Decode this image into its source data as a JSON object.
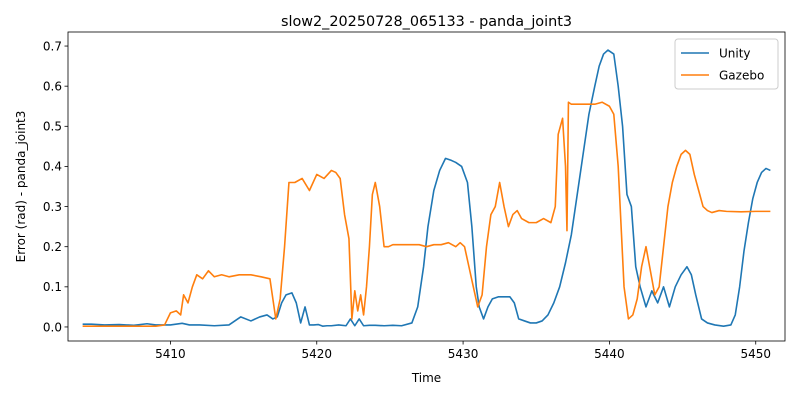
{
  "chart_data": {
    "type": "line",
    "title": "slow2_20250728_065133 - panda_joint3",
    "xlabel": "Time",
    "ylabel": "Error (rad) - panda_joint3",
    "xlim": [
      5403.0,
      5452.0
    ],
    "ylim": [
      -0.035,
      0.735
    ],
    "xticks": [
      5410,
      5420,
      5430,
      5440,
      5450
    ],
    "yticks": [
      0.0,
      0.1,
      0.2,
      0.3,
      0.4,
      0.5,
      0.6,
      0.7
    ],
    "xtick_labels": [
      "5410",
      "5420",
      "5430",
      "5440",
      "5450"
    ],
    "ytick_labels": [
      "0.0",
      "0.1",
      "0.2",
      "0.3",
      "0.4",
      "0.5",
      "0.6",
      "0.7"
    ],
    "grid": false,
    "legend_position": "top-right",
    "series": [
      {
        "name": "Unity",
        "color": "#1f77b4",
        "x": [
          5404.0,
          5404.6,
          5405.5,
          5406.5,
          5407.5,
          5408.4,
          5409.0,
          5410.0,
          5410.8,
          5411.3,
          5412.0,
          5413.0,
          5414.0,
          5414.8,
          5415.5,
          5416.1,
          5416.6,
          5417.0,
          5417.3,
          5417.6,
          5417.9,
          5418.3,
          5418.6,
          5418.9,
          5419.2,
          5419.5,
          5419.8,
          5420.1,
          5420.4,
          5420.7,
          5421.0,
          5421.5,
          5422.0,
          5422.3,
          5422.6,
          5422.9,
          5423.2,
          5423.6,
          5424.0,
          5424.6,
          5425.2,
          5425.8,
          5426.5,
          5426.9,
          5427.3,
          5427.6,
          5428.0,
          5428.4,
          5428.8,
          5429.2,
          5429.5,
          5429.9,
          5430.3,
          5430.6,
          5430.9,
          5431.1,
          5431.4,
          5431.7,
          5432.0,
          5432.4,
          5432.8,
          5433.2,
          5433.5,
          5433.8,
          5434.2,
          5434.6,
          5435.0,
          5435.4,
          5435.8,
          5436.2,
          5436.6,
          5437.0,
          5437.4,
          5437.8,
          5438.2,
          5438.6,
          5439.0,
          5439.3,
          5439.6,
          5439.9,
          5440.3,
          5440.6,
          5440.9,
          5441.2,
          5441.5,
          5441.8,
          5442.1,
          5442.5,
          5442.9,
          5443.3,
          5443.7,
          5444.1,
          5444.5,
          5444.9,
          5445.3,
          5445.6,
          5445.9,
          5446.3,
          5446.7,
          5447.2,
          5447.8,
          5448.3,
          5448.6,
          5448.9,
          5449.2,
          5449.5,
          5449.8,
          5450.1,
          5450.4,
          5450.7,
          5451.0
        ],
        "y": [
          0.007,
          0.007,
          0.005,
          0.006,
          0.004,
          0.008,
          0.005,
          0.005,
          0.009,
          0.005,
          0.005,
          0.003,
          0.005,
          0.025,
          0.015,
          0.025,
          0.03,
          0.02,
          0.025,
          0.06,
          0.08,
          0.085,
          0.06,
          0.01,
          0.05,
          0.005,
          0.005,
          0.006,
          0.002,
          0.003,
          0.003,
          0.005,
          0.003,
          0.02,
          0.003,
          0.02,
          0.003,
          0.004,
          0.004,
          0.003,
          0.004,
          0.003,
          0.01,
          0.05,
          0.15,
          0.25,
          0.34,
          0.39,
          0.42,
          0.415,
          0.41,
          0.4,
          0.36,
          0.25,
          0.1,
          0.05,
          0.02,
          0.05,
          0.07,
          0.075,
          0.075,
          0.075,
          0.06,
          0.02,
          0.015,
          0.01,
          0.01,
          0.015,
          0.03,
          0.06,
          0.1,
          0.16,
          0.23,
          0.33,
          0.43,
          0.53,
          0.6,
          0.65,
          0.68,
          0.69,
          0.68,
          0.6,
          0.5,
          0.33,
          0.3,
          0.15,
          0.1,
          0.05,
          0.09,
          0.06,
          0.1,
          0.05,
          0.1,
          0.13,
          0.15,
          0.13,
          0.08,
          0.02,
          0.01,
          0.005,
          0.002,
          0.005,
          0.03,
          0.1,
          0.19,
          0.26,
          0.32,
          0.36,
          0.385,
          0.395,
          0.39
        ]
      },
      {
        "name": "Gazebo",
        "color": "#ff7f0e",
        "x": [
          5404.0,
          5406.5,
          5409.0,
          5409.6,
          5410.0,
          5410.4,
          5410.7,
          5410.9,
          5411.2,
          5411.5,
          5411.8,
          5412.2,
          5412.6,
          5413.0,
          5413.5,
          5414.0,
          5414.7,
          5415.5,
          5416.2,
          5416.8,
          5417.2,
          5417.5,
          5417.8,
          5418.1,
          5418.5,
          5419.0,
          5419.5,
          5420.0,
          5420.5,
          5421.0,
          5421.3,
          5421.6,
          5421.9,
          5422.2,
          5422.4,
          5422.6,
          5422.8,
          5423.0,
          5423.2,
          5423.4,
          5423.6,
          5423.8,
          5424.0,
          5424.3,
          5424.6,
          5424.9,
          5425.2,
          5425.5,
          5426.0,
          5426.5,
          5427.0,
          5427.5,
          5428.0,
          5428.5,
          5429.0,
          5429.5,
          5429.8,
          5430.1,
          5430.4,
          5430.7,
          5431.0,
          5431.3,
          5431.6,
          5431.9,
          5432.2,
          5432.5,
          5432.8,
          5433.1,
          5433.4,
          5433.7,
          5434.0,
          5434.5,
          5435.0,
          5435.5,
          5436.0,
          5436.3,
          5436.5,
          5436.8,
          5437.0,
          5437.1,
          5437.2,
          5437.4,
          5437.7,
          5438.0,
          5438.5,
          5439.0,
          5439.5,
          5440.0,
          5440.3,
          5440.6,
          5441.0,
          5441.3,
          5441.6,
          5441.9,
          5442.2,
          5442.5,
          5442.8,
          5443.1,
          5443.4,
          5443.7,
          5444.0,
          5444.3,
          5444.6,
          5444.9,
          5445.2,
          5445.5,
          5445.8,
          5446.1,
          5446.4,
          5446.7,
          5447.0,
          5447.5,
          5448.0,
          5449.0,
          5450.0,
          5451.0
        ],
        "y": [
          0.002,
          0.002,
          0.002,
          0.005,
          0.035,
          0.04,
          0.03,
          0.08,
          0.06,
          0.1,
          0.13,
          0.12,
          0.14,
          0.125,
          0.13,
          0.125,
          0.13,
          0.13,
          0.125,
          0.12,
          0.02,
          0.07,
          0.2,
          0.36,
          0.36,
          0.37,
          0.34,
          0.38,
          0.37,
          0.39,
          0.385,
          0.37,
          0.28,
          0.22,
          0.02,
          0.09,
          0.04,
          0.08,
          0.03,
          0.1,
          0.2,
          0.33,
          0.36,
          0.3,
          0.2,
          0.2,
          0.205,
          0.205,
          0.205,
          0.205,
          0.205,
          0.2,
          0.205,
          0.205,
          0.21,
          0.2,
          0.21,
          0.2,
          0.15,
          0.1,
          0.05,
          0.08,
          0.2,
          0.28,
          0.3,
          0.36,
          0.3,
          0.25,
          0.28,
          0.29,
          0.27,
          0.26,
          0.26,
          0.27,
          0.26,
          0.3,
          0.48,
          0.52,
          0.4,
          0.24,
          0.56,
          0.555,
          0.555,
          0.555,
          0.555,
          0.555,
          0.56,
          0.55,
          0.53,
          0.4,
          0.1,
          0.02,
          0.03,
          0.07,
          0.15,
          0.2,
          0.14,
          0.08,
          0.1,
          0.2,
          0.3,
          0.36,
          0.4,
          0.43,
          0.44,
          0.43,
          0.38,
          0.34,
          0.3,
          0.29,
          0.285,
          0.29,
          0.288,
          0.287,
          0.288,
          0.288
        ]
      }
    ]
  }
}
